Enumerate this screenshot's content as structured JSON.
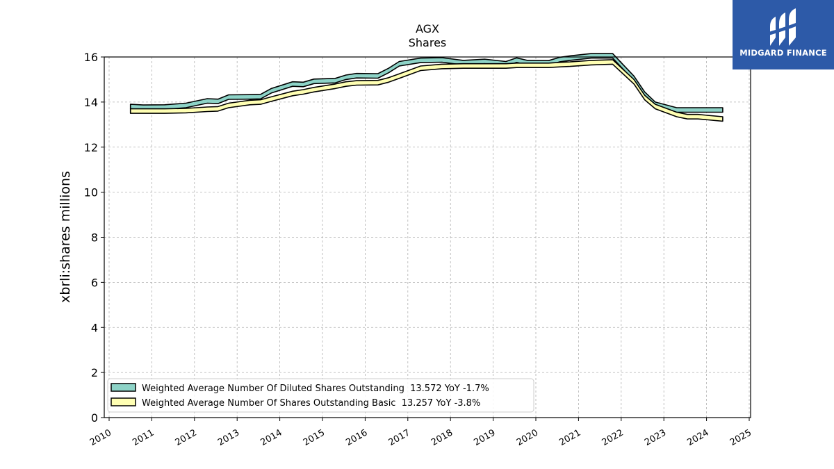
{
  "logo": {
    "text": "MIDGARD FINANCE"
  },
  "chart_data": {
    "type": "area",
    "title": "AGX",
    "subtitle": "Shares",
    "ylabel": "xbrli:shares millions",
    "xlabel": "",
    "xlim": [
      2010,
      2025
    ],
    "ylim": [
      0,
      16
    ],
    "xticks": [
      "2010",
      "2011",
      "2012",
      "2013",
      "2014",
      "2015",
      "2016",
      "2017",
      "2018",
      "2019",
      "2020",
      "2021",
      "2022",
      "2023",
      "2024",
      "2025"
    ],
    "yticks": [
      "0",
      "2",
      "4",
      "6",
      "8",
      "10",
      "12",
      "14",
      "16"
    ],
    "grid": true,
    "legend_position": "lower-left",
    "series": [
      {
        "name": "Weighted Average Number Of Diluted Shares Outstanding  13.572 YoY -1.7%",
        "color": "#8dd3c7",
        "points": [
          [
            2010.5,
            13.8
          ],
          [
            2010.8,
            13.77
          ],
          [
            2011.3,
            13.78
          ],
          [
            2011.8,
            13.85
          ],
          [
            2012.3,
            14.05
          ],
          [
            2012.55,
            14.03
          ],
          [
            2012.8,
            14.22
          ],
          [
            2013.3,
            14.23
          ],
          [
            2013.55,
            14.24
          ],
          [
            2013.8,
            14.5
          ],
          [
            2014.3,
            14.8
          ],
          [
            2014.55,
            14.78
          ],
          [
            2014.8,
            14.92
          ],
          [
            2015.3,
            14.95
          ],
          [
            2015.55,
            15.1
          ],
          [
            2015.8,
            15.17
          ],
          [
            2016.3,
            15.16
          ],
          [
            2016.55,
            15.4
          ],
          [
            2016.8,
            15.7
          ],
          [
            2017.3,
            15.85
          ],
          [
            2017.8,
            15.87
          ],
          [
            2018.3,
            15.75
          ],
          [
            2018.8,
            15.8
          ],
          [
            2019.3,
            15.7
          ],
          [
            2019.55,
            15.86
          ],
          [
            2019.8,
            15.75
          ],
          [
            2020.3,
            15.74
          ],
          [
            2020.55,
            15.88
          ],
          [
            2020.8,
            15.95
          ],
          [
            2021.3,
            16.05
          ],
          [
            2021.8,
            16.05
          ],
          [
            2022.3,
            15.05
          ],
          [
            2022.55,
            14.35
          ],
          [
            2022.8,
            13.9
          ],
          [
            2023.3,
            13.65
          ],
          [
            2023.8,
            13.65
          ],
          [
            2024.38,
            13.65
          ]
        ]
      },
      {
        "name": "Weighted Average Number Of Shares Outstanding Basic  13.257 YoY -3.8%",
        "color": "#ffffb3",
        "points": [
          [
            2010.5,
            13.6
          ],
          [
            2010.8,
            13.6
          ],
          [
            2011.3,
            13.6
          ],
          [
            2011.8,
            13.62
          ],
          [
            2012.3,
            13.68
          ],
          [
            2012.55,
            13.7
          ],
          [
            2012.8,
            13.85
          ],
          [
            2013.3,
            13.98
          ],
          [
            2013.55,
            14.0
          ],
          [
            2013.8,
            14.13
          ],
          [
            2014.3,
            14.38
          ],
          [
            2014.55,
            14.45
          ],
          [
            2014.8,
            14.55
          ],
          [
            2015.3,
            14.7
          ],
          [
            2015.55,
            14.8
          ],
          [
            2015.8,
            14.85
          ],
          [
            2016.3,
            14.86
          ],
          [
            2016.55,
            14.98
          ],
          [
            2016.8,
            15.15
          ],
          [
            2017.3,
            15.5
          ],
          [
            2017.8,
            15.58
          ],
          [
            2018.3,
            15.6
          ],
          [
            2018.8,
            15.6
          ],
          [
            2019.3,
            15.6
          ],
          [
            2019.55,
            15.63
          ],
          [
            2019.8,
            15.63
          ],
          [
            2020.3,
            15.63
          ],
          [
            2020.55,
            15.66
          ],
          [
            2020.8,
            15.68
          ],
          [
            2021.3,
            15.75
          ],
          [
            2021.8,
            15.78
          ],
          [
            2022.3,
            14.9
          ],
          [
            2022.55,
            14.2
          ],
          [
            2022.8,
            13.8
          ],
          [
            2023.3,
            13.45
          ],
          [
            2023.55,
            13.35
          ],
          [
            2023.8,
            13.35
          ],
          [
            2024.38,
            13.25
          ]
        ]
      }
    ]
  }
}
